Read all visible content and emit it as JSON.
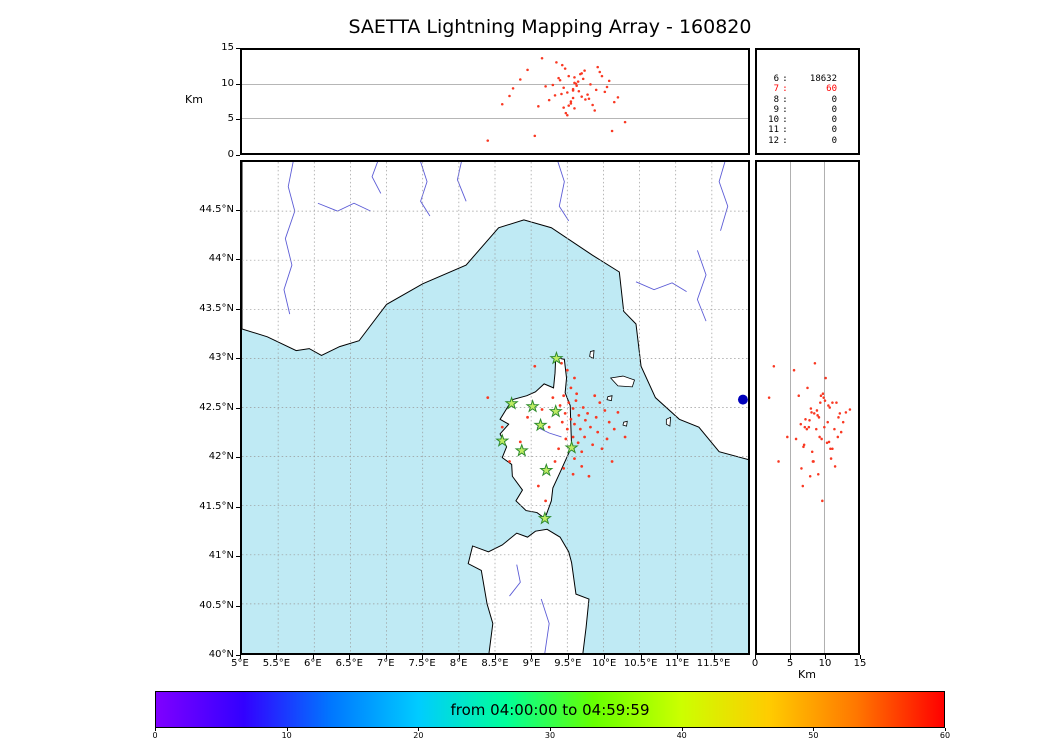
{
  "title": "SAETTA Lightning Mapping Array - 160820",
  "colors": {
    "sea": "#bfeaf4",
    "land": "#ffffff",
    "coast": "#000000",
    "river": "#5c5cd6",
    "grid": "#999999",
    "source": "#f93822",
    "station_fill": "#bfec63",
    "station_edge": "#2e8b2e",
    "stat_red": "#ff0000",
    "blue_marker": "#0000bb",
    "colorbar_gradient": [
      "#7f00ff",
      "#3300ff",
      "#0077ff",
      "#00ccff",
      "#00ff99",
      "#66ff00",
      "#ccff00",
      "#ffcc00",
      "#ff7700",
      "#ff0000"
    ]
  },
  "alt_panel": {
    "ylabel": "Km",
    "ytick_labels": [
      "15",
      "10",
      "5",
      "0"
    ],
    "ytick_values": [
      15,
      10,
      5,
      0
    ]
  },
  "stats_panel": {
    "rows": [
      {
        "key": "6",
        "value": "18632",
        "red": false
      },
      {
        "key": "7",
        "value": "60",
        "red": true
      },
      {
        "key": "8",
        "value": "0",
        "red": false
      },
      {
        "key": "9",
        "value": "0",
        "red": false
      },
      {
        "key": "10",
        "value": "0",
        "red": false
      },
      {
        "key": "11",
        "value": "0",
        "red": false
      },
      {
        "key": "12",
        "value": "0",
        "red": false
      }
    ]
  },
  "map": {
    "lat_tick_labels": [
      "44.5°N",
      "44°N",
      "43.5°N",
      "43°N",
      "42.5°N",
      "42°N",
      "41.5°N",
      "41°N",
      "40.5°N",
      "40°N"
    ],
    "lat_tick_values": [
      44.5,
      44,
      43.5,
      43,
      42.5,
      42,
      41.5,
      41,
      40.5,
      40
    ],
    "lon_tick_labels": [
      "5°E",
      "5.5°E",
      "6°E",
      "6.5°E",
      "7°E",
      "7.5°E",
      "8°E",
      "8.5°E",
      "9°E",
      "9.5°E",
      "10°E",
      "10.5°E",
      "11°E",
      "11.5°E"
    ],
    "lon_tick_values": [
      5,
      5.5,
      6,
      6.5,
      7,
      7.5,
      8,
      8.5,
      9,
      9.5,
      10,
      10.5,
      11,
      11.5
    ],
    "grid_lat": [
      40.5,
      41,
      41.5,
      42,
      42.5,
      43,
      43.5,
      44,
      44.5
    ],
    "grid_lon": [
      5.5,
      6,
      6.5,
      7,
      7.5,
      8,
      8.5,
      9,
      9.5,
      10,
      10.5,
      11,
      11.5
    ],
    "blue_marker": {
      "lon": 11.93,
      "lat": 42.58
    },
    "geometry": {
      "mainland": [
        [
          5.0,
          45.1
        ],
        [
          12.1,
          45.1
        ],
        [
          12.1,
          41.95
        ],
        [
          11.6,
          42.05
        ],
        [
          11.32,
          42.3
        ],
        [
          11.05,
          42.38
        ],
        [
          10.72,
          42.6
        ],
        [
          10.52,
          42.92
        ],
        [
          10.45,
          43.35
        ],
        [
          10.28,
          43.48
        ],
        [
          10.22,
          43.88
        ],
        [
          9.85,
          44.05
        ],
        [
          9.28,
          44.33
        ],
        [
          8.9,
          44.41
        ],
        [
          8.55,
          44.33
        ],
        [
          8.1,
          43.95
        ],
        [
          7.5,
          43.76
        ],
        [
          7.0,
          43.55
        ],
        [
          6.62,
          43.18
        ],
        [
          6.35,
          43.12
        ],
        [
          6.1,
          43.03
        ],
        [
          5.93,
          43.1
        ],
        [
          5.75,
          43.08
        ],
        [
          5.35,
          43.22
        ],
        [
          5.0,
          43.3
        ]
      ],
      "corsica": [
        [
          9.34,
          43.01
        ],
        [
          9.46,
          42.99
        ],
        [
          9.49,
          42.8
        ],
        [
          9.47,
          42.65
        ],
        [
          9.54,
          42.52
        ],
        [
          9.55,
          42.3
        ],
        [
          9.56,
          42.1
        ],
        [
          9.4,
          41.84
        ],
        [
          9.3,
          41.68
        ],
        [
          9.28,
          41.55
        ],
        [
          9.19,
          41.37
        ],
        [
          9.08,
          41.43
        ],
        [
          8.93,
          41.45
        ],
        [
          8.79,
          41.55
        ],
        [
          8.88,
          41.66
        ],
        [
          8.74,
          41.8
        ],
        [
          8.73,
          41.92
        ],
        [
          8.6,
          41.99
        ],
        [
          8.66,
          42.1
        ],
        [
          8.57,
          42.23
        ],
        [
          8.69,
          42.33
        ],
        [
          8.57,
          42.38
        ],
        [
          8.68,
          42.51
        ],
        [
          8.74,
          42.58
        ],
        [
          8.94,
          42.62
        ],
        [
          9.06,
          42.66
        ],
        [
          9.18,
          42.74
        ],
        [
          9.31,
          42.7
        ],
        [
          9.33,
          42.85
        ]
      ],
      "sardinia": [
        [
          9.22,
          41.26
        ],
        [
          9.4,
          41.18
        ],
        [
          9.52,
          41.03
        ],
        [
          9.56,
          40.92
        ],
        [
          9.62,
          40.6
        ],
        [
          9.8,
          40.55
        ],
        [
          9.76,
          40.26
        ],
        [
          9.7,
          39.9
        ],
        [
          8.4,
          39.9
        ],
        [
          8.47,
          40.3
        ],
        [
          8.39,
          40.5
        ],
        [
          8.31,
          40.84
        ],
        [
          8.13,
          40.91
        ],
        [
          8.19,
          41.09
        ],
        [
          8.41,
          41.03
        ],
        [
          8.6,
          41.1
        ],
        [
          8.8,
          41.22
        ],
        [
          8.95,
          41.18
        ],
        [
          9.06,
          41.24
        ]
      ],
      "islands": [
        [
          [
            10.1,
            42.8
          ],
          [
            10.27,
            42.82
          ],
          [
            10.43,
            42.78
          ],
          [
            10.4,
            42.71
          ],
          [
            10.2,
            42.72
          ]
        ],
        [
          [
            9.82,
            43.07
          ],
          [
            9.87,
            43.08
          ],
          [
            9.86,
            43.0
          ],
          [
            9.81,
            43.02
          ]
        ],
        [
          [
            10.06,
            42.61
          ],
          [
            10.12,
            42.62
          ],
          [
            10.11,
            42.57
          ],
          [
            10.05,
            42.58
          ]
        ],
        [
          [
            10.28,
            42.35
          ],
          [
            10.33,
            42.36
          ],
          [
            10.32,
            42.31
          ],
          [
            10.27,
            42.32
          ]
        ],
        [
          [
            10.87,
            42.38
          ],
          [
            10.93,
            42.4
          ],
          [
            10.92,
            42.31
          ],
          [
            10.87,
            42.33
          ]
        ]
      ],
      "rivers": [
        [
          [
            5.72,
            45.05
          ],
          [
            5.64,
            44.75
          ],
          [
            5.73,
            44.5
          ],
          [
            5.6,
            44.22
          ],
          [
            5.69,
            43.95
          ],
          [
            5.58,
            43.7
          ],
          [
            5.66,
            43.45
          ]
        ],
        [
          [
            6.05,
            44.58
          ],
          [
            6.32,
            44.5
          ],
          [
            6.55,
            44.58
          ],
          [
            6.78,
            44.5
          ]
        ],
        [
          [
            6.9,
            45.05
          ],
          [
            6.8,
            44.85
          ],
          [
            6.92,
            44.68
          ]
        ],
        [
          [
            7.45,
            45.05
          ],
          [
            7.56,
            44.8
          ],
          [
            7.47,
            44.6
          ],
          [
            7.6,
            44.45
          ]
        ],
        [
          [
            8.05,
            45.05
          ],
          [
            7.98,
            44.82
          ],
          [
            8.1,
            44.6
          ]
        ],
        [
          [
            9.35,
            45.05
          ],
          [
            9.46,
            44.8
          ],
          [
            9.39,
            44.55
          ],
          [
            9.52,
            44.4
          ]
        ],
        [
          [
            10.45,
            43.78
          ],
          [
            10.7,
            43.7
          ],
          [
            10.95,
            43.77
          ],
          [
            11.15,
            43.68
          ]
        ],
        [
          [
            11.3,
            44.1
          ],
          [
            11.42,
            43.85
          ],
          [
            11.3,
            43.6
          ],
          [
            11.42,
            43.38
          ]
        ],
        [
          [
            11.7,
            45.05
          ],
          [
            11.6,
            44.8
          ],
          [
            11.72,
            44.55
          ],
          [
            11.62,
            44.3
          ]
        ],
        [
          [
            9.08,
            42.3
          ],
          [
            9.25,
            42.24
          ],
          [
            9.42,
            42.2
          ]
        ],
        [
          [
            9.18,
            39.95
          ],
          [
            9.25,
            40.3
          ],
          [
            9.14,
            40.55
          ]
        ],
        [
          [
            8.7,
            40.58
          ],
          [
            8.85,
            40.72
          ],
          [
            8.8,
            40.9
          ]
        ]
      ]
    }
  },
  "right_panel": {
    "xlabel": "Km",
    "xtick_labels": [
      "0",
      "5",
      "10",
      "15"
    ],
    "xtick_values": [
      0,
      5,
      10,
      15
    ]
  },
  "colorbar": {
    "label": "from 04:00:00 to 04:59:59",
    "tick_labels": [
      "0",
      "10",
      "20",
      "30",
      "40",
      "50",
      "60"
    ],
    "tick_values": [
      0,
      10,
      20,
      30,
      40,
      50,
      60
    ]
  },
  "chart_data": {
    "type": "scatter",
    "title": "SAETTA Lightning Mapping Array - 160820",
    "panels": {
      "alt_vs_lon": {
        "xlim": [
          5,
          12
        ],
        "ylim": [
          0,
          15
        ],
        "ylabel": "Km",
        "grid_y": [
          5,
          10
        ]
      },
      "map": {
        "xlim": [
          5,
          12
        ],
        "ylim": [
          40,
          45
        ],
        "grid": "0.5deg dashed"
      },
      "alt_vs_lat": {
        "xlim": [
          0,
          15
        ],
        "ylim": [
          40,
          45
        ],
        "xlabel": "Km",
        "grid_x": [
          5,
          10
        ]
      }
    },
    "time_window": {
      "from": "04:00:00",
      "to": "04:59:59"
    },
    "colorbar_minutes": [
      0,
      60
    ],
    "station_counts": [
      [
        "6",
        18632
      ],
      [
        "7",
        60
      ],
      [
        "8",
        0
      ],
      [
        "9",
        0
      ],
      [
        "10",
        0
      ],
      [
        "11",
        0
      ],
      [
        "12",
        0
      ]
    ],
    "stations_lonlat": [
      [
        9.35,
        43.0
      ],
      [
        8.73,
        42.54
      ],
      [
        9.02,
        42.51
      ],
      [
        9.34,
        42.46
      ],
      [
        9.13,
        42.32
      ],
      [
        8.6,
        42.16
      ],
      [
        8.87,
        42.06
      ],
      [
        9.56,
        42.09
      ],
      [
        9.21,
        41.86
      ],
      [
        9.19,
        41.37
      ]
    ],
    "sources_lon_lat_alt": [
      [
        9.45,
        42.62,
        9.5
      ],
      [
        9.52,
        42.55,
        11.2
      ],
      [
        9.58,
        42.49,
        8.0
      ],
      [
        9.62,
        42.57,
        10.1
      ],
      [
        9.47,
        42.44,
        12.3
      ],
      [
        9.55,
        42.38,
        7.2
      ],
      [
        9.66,
        42.42,
        9.0
      ],
      [
        9.72,
        42.5,
        10.8
      ],
      [
        9.6,
        42.33,
        6.5
      ],
      [
        9.5,
        42.28,
        8.8
      ],
      [
        9.68,
        42.28,
        11.5
      ],
      [
        9.75,
        42.37,
        7.8
      ],
      [
        9.58,
        42.2,
        9.3
      ],
      [
        9.65,
        42.14,
        10.4
      ],
      [
        9.52,
        42.1,
        6.9
      ],
      [
        9.7,
        42.05,
        8.2
      ],
      [
        9.6,
        41.98,
        11.0
      ],
      [
        9.55,
        42.7,
        7.5
      ],
      [
        9.4,
        42.52,
        10.6
      ],
      [
        9.43,
        42.35,
        12.8
      ],
      [
        9.48,
        42.18,
        5.8
      ],
      [
        9.63,
        42.64,
        9.8
      ],
      [
        9.78,
        42.44,
        8.5
      ],
      [
        9.82,
        42.3,
        10.0
      ],
      [
        9.74,
        42.2,
        12.0
      ],
      [
        9.85,
        42.12,
        7.0
      ],
      [
        9.9,
        42.4,
        9.2
      ],
      [
        9.95,
        42.55,
        11.8
      ],
      [
        9.88,
        42.62,
        6.2
      ],
      [
        10.02,
        42.47,
        8.9
      ],
      [
        10.08,
        42.35,
        10.5
      ],
      [
        9.92,
        42.25,
        12.5
      ],
      [
        10.15,
        42.28,
        7.4
      ],
      [
        10.05,
        42.18,
        9.6
      ],
      [
        9.98,
        42.08,
        11.2
      ],
      [
        10.2,
        42.45,
        8.1
      ],
      [
        9.35,
        42.45,
        13.2
      ],
      [
        9.3,
        42.6,
        9.9
      ],
      [
        9.25,
        42.3,
        7.7
      ],
      [
        9.38,
        42.08,
        10.9
      ],
      [
        9.33,
        41.95,
        8.4
      ],
      [
        9.45,
        41.88,
        6.6
      ],
      [
        9.58,
        41.82,
        9.1
      ],
      [
        9.7,
        41.9,
        11.6
      ],
      [
        9.8,
        41.8,
        7.9
      ],
      [
        9.5,
        42.88,
        5.5
      ],
      [
        9.42,
        42.95,
        8.6
      ],
      [
        9.6,
        42.8,
        10.2
      ],
      [
        8.95,
        42.4,
        12.1
      ],
      [
        8.75,
        42.55,
        9.4
      ],
      [
        8.6,
        42.3,
        7.1
      ],
      [
        8.85,
        42.15,
        10.7
      ],
      [
        8.7,
        41.95,
        8.3
      ],
      [
        9.1,
        41.7,
        6.8
      ],
      [
        9.2,
        41.55,
        9.7
      ],
      [
        10.3,
        42.2,
        4.5
      ],
      [
        10.12,
        41.95,
        3.2
      ],
      [
        9.05,
        42.92,
        2.5
      ],
      [
        8.4,
        42.6,
        1.8
      ],
      [
        9.15,
        42.48,
        13.8
      ]
    ]
  }
}
